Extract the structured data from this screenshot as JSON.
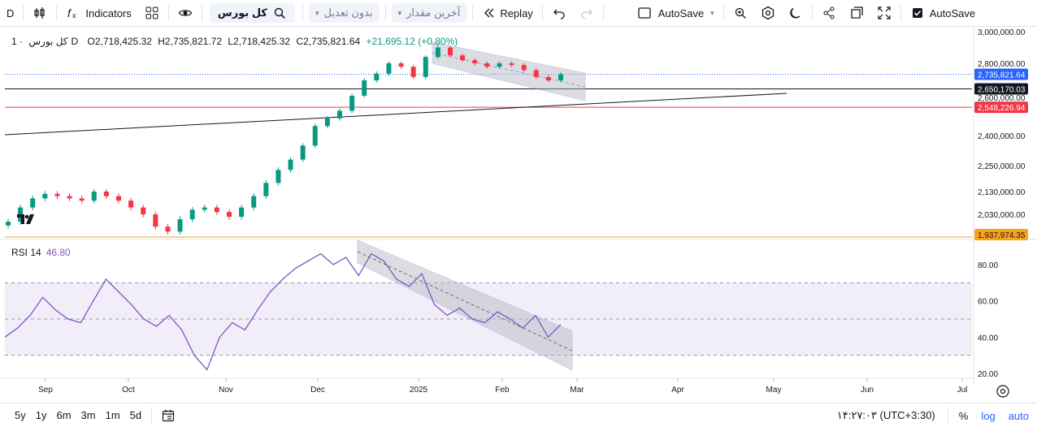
{
  "toolbar": {
    "interval": "D",
    "indicators_label": "Indicators",
    "symbol": "کل بورس",
    "adjust_dropdown": "بدون تعدیل",
    "value_dropdown": "آخرین مقدار",
    "replay_label": "Replay",
    "autosave_label": "AutoSave",
    "autosave_checkbox_label": "AutoSave"
  },
  "legend": {
    "symbol": "کل بورس",
    "interval": "1D",
    "open": "O2,718,425.32",
    "high": "H2,735,821.72",
    "low": "L2,718,425.32",
    "close": "C2,735,821.64",
    "change": "+21,695.12 (+0.80%)"
  },
  "rsi": {
    "name": "RSI 14",
    "value": "46.80"
  },
  "price_axis": {
    "ticks": [
      "3,000,000.00",
      "2,800,000.00",
      "2,600,000.00",
      "2,400,000.00",
      "2,250,000.00",
      "2,130,000.00",
      "2,030,000.00"
    ],
    "badges": [
      {
        "label": "2,735,821.64",
        "color": "#2962ff"
      },
      {
        "label": "2,650,170.03",
        "color": "#131722"
      },
      {
        "label": "2,548,226.94",
        "color": "#f23645"
      },
      {
        "label": "1,937,974.35",
        "color": "#f7a21b"
      }
    ]
  },
  "rsi_axis": {
    "ticks": [
      "80.00",
      "60.00",
      "40.00",
      "20.00"
    ]
  },
  "time_axis": {
    "labels": [
      "Sep",
      "Oct",
      "Nov",
      "Dec",
      "2025",
      "Feb",
      "Mar",
      "Apr",
      "May",
      "Jun",
      "Jul"
    ]
  },
  "bottombar": {
    "ranges": [
      "5y",
      "1y",
      "6m",
      "3m",
      "1m",
      "5d"
    ],
    "clock": "۱۴:۲۷:۰۳ (UTC+3:30)",
    "percent": "%",
    "log": "log",
    "auto": "auto"
  },
  "colors": {
    "up": "#089981",
    "down": "#f23645",
    "rsi": "#7e57c2",
    "channel": "#9598d6"
  },
  "icons": [
    "indicators-fx-icon",
    "bar-style-icon",
    "templates-icon",
    "eye-icon",
    "search-icon",
    "replay-icon",
    "undo-icon",
    "redo-icon",
    "layout-icon",
    "pencil-icon",
    "gear-icon",
    "moon-icon",
    "share-icon",
    "window-icon",
    "fullscreen-icon",
    "checkbox-icon",
    "calendar-icon",
    "settings-icon"
  ],
  "chart_data": [
    {
      "type": "candlestick",
      "x_labels": [
        "Sep",
        "Oct",
        "Nov",
        "Dec",
        "2025",
        "Feb",
        "Mar"
      ],
      "close_series": [
        2000000,
        2060000,
        2100000,
        2120000,
        2110000,
        2100000,
        2090000,
        2130000,
        2110000,
        2090000,
        2060000,
        2030000,
        1980000,
        1960000,
        2010000,
        2050000,
        2060000,
        2040000,
        2020000,
        2060000,
        2110000,
        2170000,
        2230000,
        2280000,
        2350000,
        2450000,
        2490000,
        2530000,
        2610000,
        2700000,
        2740000,
        2800000,
        2780000,
        2720000,
        2840000,
        2900000,
        2850000,
        2820000,
        2800000,
        2780000,
        2800000,
        2790000,
        2760000,
        2720000,
        2700000,
        2736000
      ],
      "horizontal_levels": [
        2735821.64,
        2650170.03,
        2548226.94,
        1937974.35
      ],
      "ylim": [
        1900000,
        3050000
      ]
    },
    {
      "type": "line",
      "name": "RSI 14",
      "values": [
        40,
        45,
        52,
        62,
        55,
        50,
        48,
        60,
        72,
        65,
        58,
        50,
        46,
        52,
        44,
        30,
        22,
        40,
        48,
        44,
        55,
        65,
        72,
        78,
        82,
        86,
        80,
        84,
        74,
        86,
        82,
        72,
        68,
        75,
        58,
        52,
        56,
        50,
        48,
        54,
        50,
        45,
        52,
        40,
        47
      ],
      "ylim": [
        15,
        95
      ],
      "bands": [
        30,
        50,
        70
      ]
    }
  ]
}
